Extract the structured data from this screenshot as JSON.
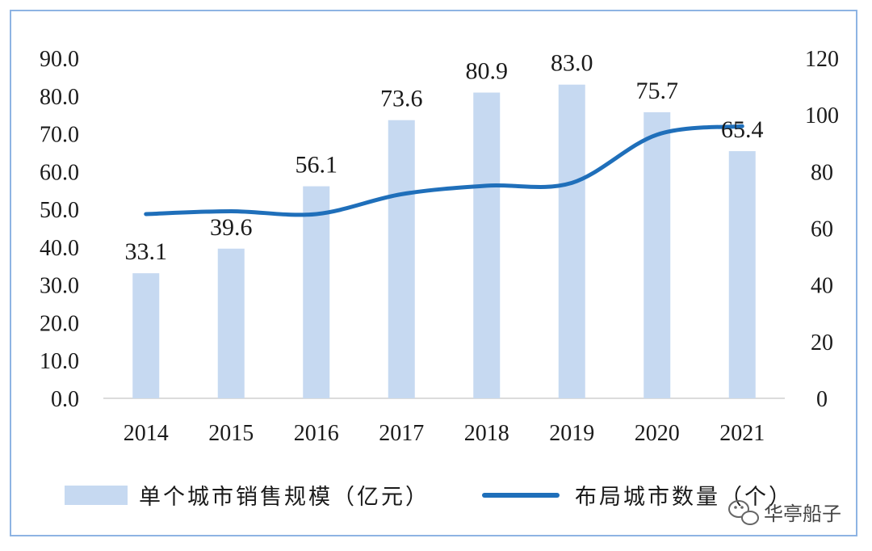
{
  "chart_data": {
    "type": "bar",
    "categories": [
      "2014",
      "2015",
      "2016",
      "2017",
      "2018",
      "2019",
      "2020",
      "2021"
    ],
    "series": [
      {
        "name": "单个城市销售规模（亿元）",
        "type": "bar",
        "axis": "left",
        "color": "#c6d9f1",
        "values": [
          33.1,
          39.6,
          56.1,
          73.6,
          80.9,
          83.0,
          75.7,
          65.4
        ],
        "labels": [
          "33.1",
          "39.6",
          "56.1",
          "73.6",
          "80.9",
          "83.0",
          "75.7",
          "65.4"
        ]
      },
      {
        "name": "布局城市数量（个）",
        "type": "line",
        "axis": "right",
        "color": "#1f6fba",
        "values": [
          65,
          66,
          65,
          72,
          75,
          76,
          93,
          96
        ]
      }
    ],
    "y_left": {
      "min": 0,
      "max": 90,
      "step": 10,
      "ticks": [
        "0.0",
        "10.0",
        "20.0",
        "30.0",
        "40.0",
        "50.0",
        "60.0",
        "70.0",
        "80.0",
        "90.0"
      ]
    },
    "y_right": {
      "min": 0,
      "max": 120,
      "step": 20,
      "ticks": [
        "0",
        "20",
        "40",
        "60",
        "80",
        "100",
        "120"
      ]
    },
    "grid": false,
    "legend_position": "bottom"
  },
  "watermark": {
    "text": "华亭船子",
    "icon": "wechat-icon"
  }
}
